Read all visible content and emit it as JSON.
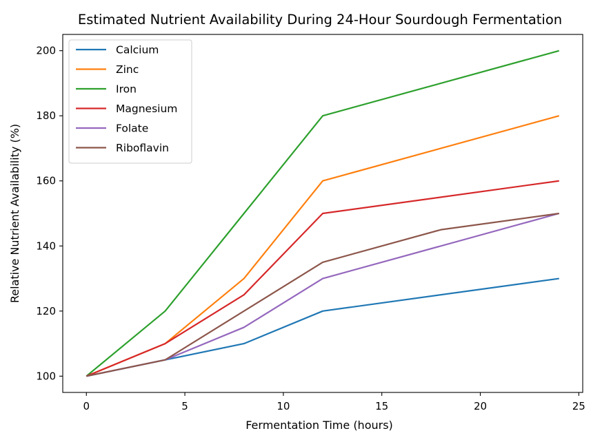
{
  "chart_data": {
    "type": "line",
    "title": "Estimated Nutrient Availability During 24-Hour Sourdough Fermentation",
    "xlabel": "Fermentation Time (hours)",
    "ylabel": "Relative Nutrient Availability (%)",
    "xlim": [
      -1.2,
      25.2
    ],
    "ylim": [
      95,
      205
    ],
    "xticks": [
      0,
      5,
      10,
      15,
      20,
      25
    ],
    "yticks": [
      100,
      120,
      140,
      160,
      180,
      200
    ],
    "legend_position": "upper-left",
    "series": [
      {
        "name": "Calcium",
        "color": "#1f77b4",
        "x": [
          0,
          4,
          8,
          12,
          24
        ],
        "values": [
          100,
          105,
          110,
          120,
          130
        ]
      },
      {
        "name": "Zinc",
        "color": "#ff7f0e",
        "x": [
          0,
          4,
          8,
          12,
          24
        ],
        "values": [
          100,
          110,
          130,
          160,
          180
        ]
      },
      {
        "name": "Iron",
        "color": "#2ca02c",
        "x": [
          0,
          4,
          8,
          12,
          24
        ],
        "values": [
          100,
          120,
          150,
          180,
          200
        ]
      },
      {
        "name": "Magnesium",
        "color": "#d62728",
        "x": [
          0,
          4,
          8,
          12,
          24
        ],
        "values": [
          100,
          110,
          125,
          150,
          160
        ]
      },
      {
        "name": "Folate",
        "color": "#9467bd",
        "x": [
          0,
          4,
          8,
          12,
          24
        ],
        "values": [
          100,
          105,
          115,
          130,
          150
        ]
      },
      {
        "name": "Riboflavin",
        "color": "#8c564b",
        "x": [
          0,
          4,
          8,
          12,
          18,
          24
        ],
        "values": [
          100,
          105,
          120,
          135,
          145,
          150
        ]
      }
    ]
  }
}
